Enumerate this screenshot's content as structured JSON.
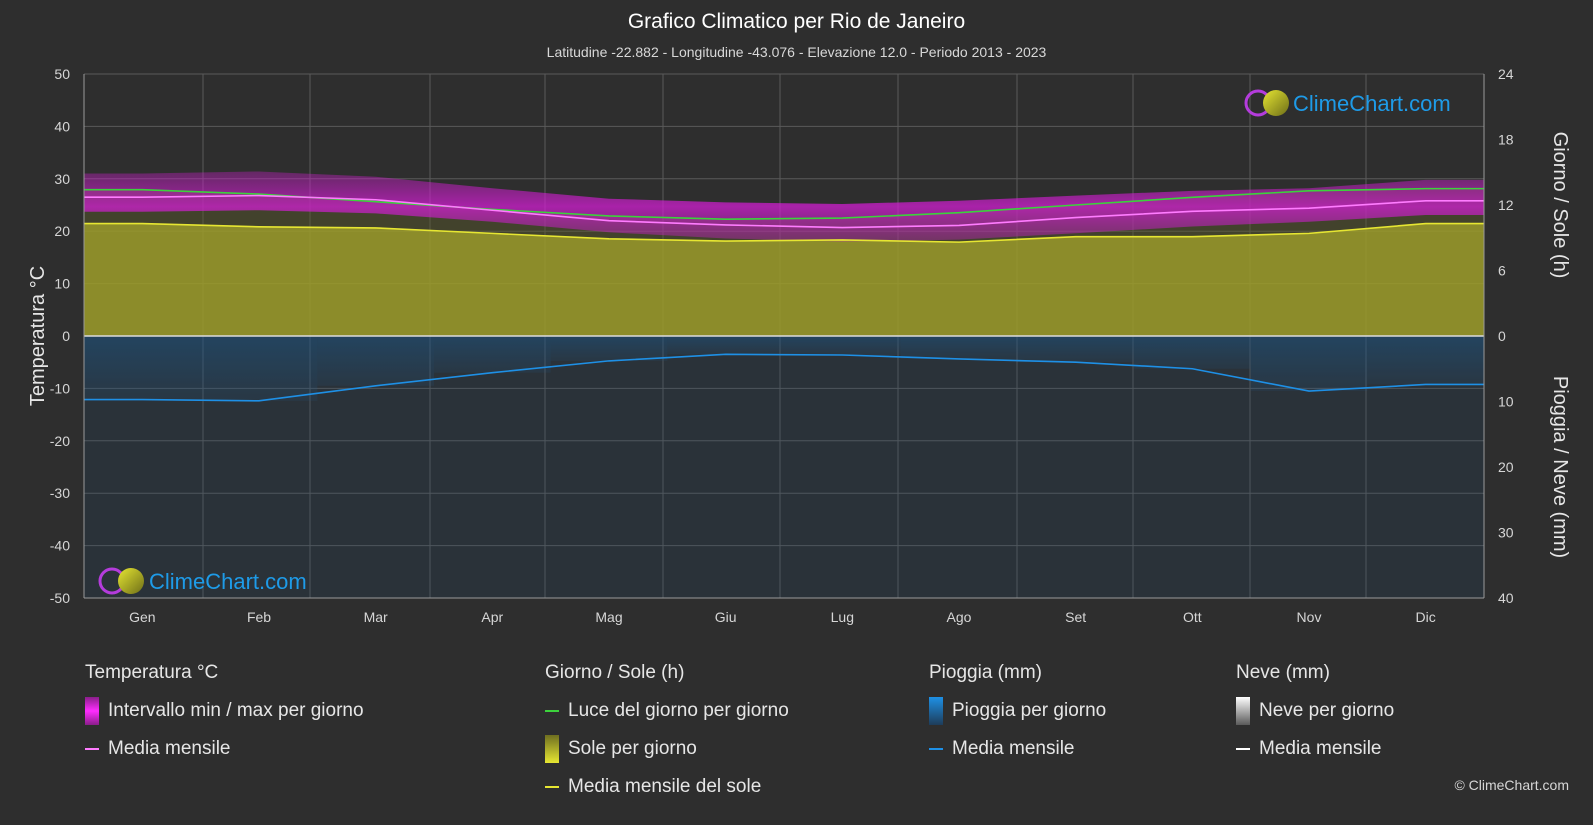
{
  "header": {
    "title": "Grafico Climatico per Rio de Janeiro",
    "subtitle": "Latitudine -22.882 - Longitudine -43.076 - Elevazione 12.0 - Periodo 2013 - 2023"
  },
  "axes": {
    "left_title": "Temperatura °C",
    "right_top_title": "Giorno / Sole (h)",
    "right_bottom_title": "Pioggia / Neve (mm)"
  },
  "brand": {
    "name": "ClimeChart.com"
  },
  "copyright": "© ClimeChart.com",
  "legend": {
    "temperature": {
      "title": "Temperatura °C",
      "range_label": "Intervallo min / max per giorno",
      "mean_label": "Media mensile"
    },
    "daylight": {
      "title": "Giorno / Sole (h)",
      "daylight_label": "Luce del giorno per giorno",
      "sun_label": "Sole per giorno",
      "sun_mean_label": "Media mensile del sole"
    },
    "rain": {
      "title": "Pioggia (mm)",
      "day_label": "Pioggia per giorno",
      "mean_label": "Media mensile"
    },
    "snow": {
      "title": "Neve (mm)",
      "day_label": "Neve per giorno",
      "mean_label": "Media mensile"
    }
  },
  "colors": {
    "background": "#2e2e2e",
    "temp_range": "#d21ed2",
    "temp_mean": "#ff7cff",
    "daylight": "#3cd23c",
    "sun_fill": "#a6a62a",
    "sun_mean": "#e6e632",
    "rain_fill": "#1e5a8c",
    "rain_mean": "#1e90e6",
    "snow": "#ffffff",
    "brand": "#1e9be8"
  },
  "chart_data": {
    "type": "area",
    "categories": [
      "Gen",
      "Feb",
      "Mar",
      "Apr",
      "Mag",
      "Giu",
      "Lug",
      "Ago",
      "Set",
      "Ott",
      "Nov",
      "Dic"
    ],
    "left_axis": {
      "label": "Temperatura °C",
      "min": -50,
      "max": 50,
      "ticks": [
        50,
        40,
        30,
        20,
        10,
        0,
        -10,
        -20,
        -30,
        -40,
        -50
      ]
    },
    "right_axis_top": {
      "label": "Giorno / Sole (h)",
      "min": 0,
      "max": 24,
      "ticks": [
        24,
        18,
        12,
        6,
        0
      ]
    },
    "right_axis_bottom": {
      "label": "Pioggia / Neve (mm)",
      "min": 0,
      "max": 40,
      "ticks": [
        0,
        10,
        20,
        30,
        40
      ]
    },
    "grid": true,
    "series": [
      {
        "name": "Luce del giorno per giorno",
        "axis": "hours",
        "values": [
          13.4,
          13.0,
          12.3,
          11.6,
          11.0,
          10.7,
          10.8,
          11.3,
          12.0,
          12.7,
          13.3,
          13.5
        ]
      },
      {
        "name": "Media mensile del sole",
        "axis": "hours",
        "values": [
          10.3,
          10.0,
          9.9,
          9.4,
          8.9,
          8.7,
          8.8,
          8.6,
          9.1,
          9.1,
          9.4,
          10.3
        ]
      },
      {
        "name": "Media mensile",
        "axis": "temperature",
        "values": [
          26.5,
          26.8,
          26.0,
          24.0,
          22.0,
          21.2,
          20.7,
          21.1,
          22.6,
          23.8,
          24.4,
          25.8
        ]
      },
      {
        "name": "Intervallo min / max per giorno",
        "axis": "temperature",
        "min": [
          23.7,
          24.0,
          23.4,
          21.8,
          19.8,
          18.6,
          18.0,
          18.4,
          19.6,
          20.9,
          21.8,
          23.1
        ],
        "max": [
          31.0,
          31.4,
          30.4,
          28.2,
          26.2,
          25.5,
          25.2,
          25.8,
          26.8,
          27.7,
          28.2,
          29.8
        ]
      },
      {
        "name": "Media mensile",
        "axis": "rain",
        "values": [
          9.7,
          9.9,
          7.6,
          5.6,
          3.8,
          2.8,
          2.9,
          3.5,
          4.0,
          5.0,
          8.4,
          7.4
        ]
      },
      {
        "name": "Media mensile",
        "axis": "snow",
        "values": [
          0,
          0,
          0,
          0,
          0,
          0,
          0,
          0,
          0,
          0,
          0,
          0
        ]
      }
    ]
  }
}
